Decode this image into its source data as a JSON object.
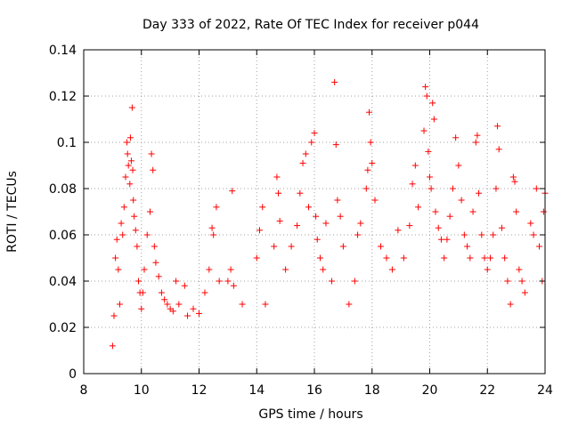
{
  "chart_data": {
    "type": "scatter",
    "title": "Day 333 of 2022, Rate Of TEC Index for receiver p044",
    "xlabel": "GPS time / hours",
    "ylabel": "ROTI / TECUs",
    "xlim": [
      8,
      24
    ],
    "ylim": [
      0,
      0.14
    ],
    "x_ticks": [
      8,
      10,
      12,
      14,
      16,
      18,
      20,
      22,
      24
    ],
    "y_ticks": [
      0,
      0.02,
      0.04,
      0.06,
      0.08,
      0.1,
      0.12,
      0.14
    ],
    "x_tick_labels": [
      "8",
      "10",
      "12",
      "14",
      "16",
      "18",
      "20",
      "22",
      "24"
    ],
    "y_tick_labels": [
      "0",
      "0.02",
      "0.04",
      "0.06",
      "0.08",
      "0.1",
      "0.12",
      "0.14"
    ],
    "grid": true,
    "marker": "+",
    "color": "#ff0000",
    "series": [
      {
        "name": "ROTI",
        "points": [
          [
            9.0,
            0.012
          ],
          [
            9.05,
            0.025
          ],
          [
            9.1,
            0.05
          ],
          [
            9.15,
            0.058
          ],
          [
            9.2,
            0.045
          ],
          [
            9.25,
            0.03
          ],
          [
            9.3,
            0.065
          ],
          [
            9.35,
            0.06
          ],
          [
            9.4,
            0.072
          ],
          [
            9.45,
            0.085
          ],
          [
            9.5,
            0.1
          ],
          [
            9.52,
            0.095
          ],
          [
            9.55,
            0.09
          ],
          [
            9.6,
            0.082
          ],
          [
            9.62,
            0.102
          ],
          [
            9.65,
            0.092
          ],
          [
            9.68,
            0.115
          ],
          [
            9.7,
            0.088
          ],
          [
            9.72,
            0.075
          ],
          [
            9.75,
            0.068
          ],
          [
            9.8,
            0.062
          ],
          [
            9.85,
            0.055
          ],
          [
            9.9,
            0.04
          ],
          [
            9.95,
            0.035
          ],
          [
            10.0,
            0.028
          ],
          [
            10.05,
            0.035
          ],
          [
            10.1,
            0.045
          ],
          [
            10.2,
            0.06
          ],
          [
            10.3,
            0.07
          ],
          [
            10.35,
            0.095
          ],
          [
            10.4,
            0.088
          ],
          [
            10.45,
            0.055
          ],
          [
            10.5,
            0.048
          ],
          [
            10.6,
            0.042
          ],
          [
            10.7,
            0.035
          ],
          [
            10.8,
            0.032
          ],
          [
            10.9,
            0.03
          ],
          [
            11.0,
            0.028
          ],
          [
            11.1,
            0.027
          ],
          [
            11.2,
            0.04
          ],
          [
            11.3,
            0.03
          ],
          [
            11.5,
            0.038
          ],
          [
            11.6,
            0.025
          ],
          [
            11.8,
            0.028
          ],
          [
            12.0,
            0.026
          ],
          [
            12.2,
            0.035
          ],
          [
            12.35,
            0.045
          ],
          [
            12.45,
            0.063
          ],
          [
            12.5,
            0.06
          ],
          [
            12.6,
            0.072
          ],
          [
            12.7,
            0.04
          ],
          [
            13.0,
            0.04
          ],
          [
            13.1,
            0.045
          ],
          [
            13.15,
            0.079
          ],
          [
            13.2,
            0.038
          ],
          [
            13.5,
            0.03
          ],
          [
            14.0,
            0.05
          ],
          [
            14.1,
            0.062
          ],
          [
            14.2,
            0.072
          ],
          [
            14.3,
            0.03
          ],
          [
            14.6,
            0.055
          ],
          [
            14.7,
            0.085
          ],
          [
            14.75,
            0.078
          ],
          [
            14.8,
            0.066
          ],
          [
            15.0,
            0.045
          ],
          [
            15.2,
            0.055
          ],
          [
            15.4,
            0.064
          ],
          [
            15.5,
            0.078
          ],
          [
            15.6,
            0.091
          ],
          [
            15.7,
            0.095
          ],
          [
            15.8,
            0.072
          ],
          [
            15.9,
            0.1
          ],
          [
            16.0,
            0.104
          ],
          [
            16.05,
            0.068
          ],
          [
            16.1,
            0.058
          ],
          [
            16.2,
            0.05
          ],
          [
            16.3,
            0.045
          ],
          [
            16.4,
            0.065
          ],
          [
            16.6,
            0.04
          ],
          [
            16.7,
            0.126
          ],
          [
            16.75,
            0.099
          ],
          [
            16.8,
            0.075
          ],
          [
            16.9,
            0.068
          ],
          [
            17.0,
            0.055
          ],
          [
            17.2,
            0.03
          ],
          [
            17.4,
            0.04
          ],
          [
            17.5,
            0.06
          ],
          [
            17.6,
            0.065
          ],
          [
            17.8,
            0.08
          ],
          [
            17.85,
            0.088
          ],
          [
            17.9,
            0.113
          ],
          [
            17.95,
            0.1
          ],
          [
            18.0,
            0.091
          ],
          [
            18.1,
            0.075
          ],
          [
            18.3,
            0.055
          ],
          [
            18.5,
            0.05
          ],
          [
            18.7,
            0.045
          ],
          [
            18.9,
            0.062
          ],
          [
            19.1,
            0.05
          ],
          [
            19.3,
            0.064
          ],
          [
            19.4,
            0.082
          ],
          [
            19.5,
            0.09
          ],
          [
            19.6,
            0.072
          ],
          [
            19.8,
            0.105
          ],
          [
            19.85,
            0.124
          ],
          [
            19.9,
            0.12
          ],
          [
            19.95,
            0.096
          ],
          [
            20.0,
            0.085
          ],
          [
            20.05,
            0.08
          ],
          [
            20.1,
            0.117
          ],
          [
            20.15,
            0.11
          ],
          [
            20.2,
            0.07
          ],
          [
            20.3,
            0.063
          ],
          [
            20.4,
            0.058
          ],
          [
            20.5,
            0.05
          ],
          [
            20.6,
            0.058
          ],
          [
            20.7,
            0.068
          ],
          [
            20.8,
            0.08
          ],
          [
            20.9,
            0.102
          ],
          [
            21.0,
            0.09
          ],
          [
            21.1,
            0.075
          ],
          [
            21.2,
            0.06
          ],
          [
            21.3,
            0.055
          ],
          [
            21.4,
            0.05
          ],
          [
            21.5,
            0.07
          ],
          [
            21.6,
            0.1
          ],
          [
            21.65,
            0.103
          ],
          [
            21.7,
            0.078
          ],
          [
            21.8,
            0.06
          ],
          [
            21.9,
            0.05
          ],
          [
            22.0,
            0.045
          ],
          [
            22.1,
            0.05
          ],
          [
            22.2,
            0.06
          ],
          [
            22.3,
            0.08
          ],
          [
            22.35,
            0.107
          ],
          [
            22.4,
            0.097
          ],
          [
            22.5,
            0.063
          ],
          [
            22.6,
            0.05
          ],
          [
            22.7,
            0.04
          ],
          [
            22.8,
            0.03
          ],
          [
            22.9,
            0.085
          ],
          [
            22.95,
            0.083
          ],
          [
            23.0,
            0.07
          ],
          [
            23.1,
            0.045
          ],
          [
            23.2,
            0.04
          ],
          [
            23.3,
            0.035
          ],
          [
            23.5,
            0.065
          ],
          [
            23.6,
            0.06
          ],
          [
            23.7,
            0.08
          ],
          [
            23.8,
            0.055
          ],
          [
            23.9,
            0.04
          ],
          [
            23.95,
            0.07
          ],
          [
            24.0,
            0.078
          ]
        ]
      }
    ]
  }
}
